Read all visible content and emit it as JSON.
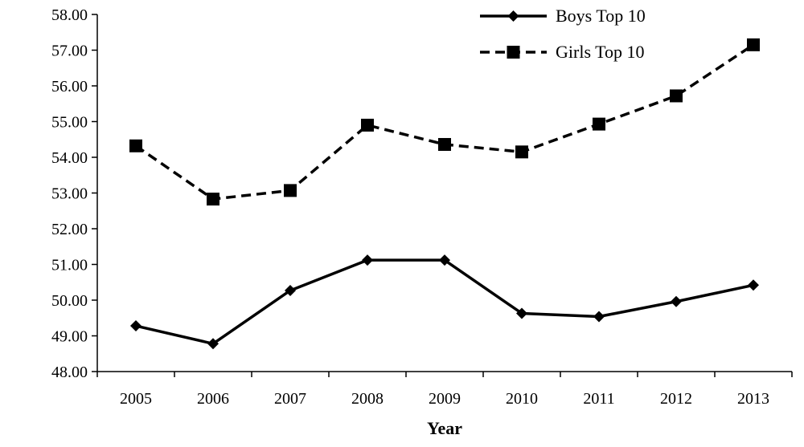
{
  "chart_data": {
    "type": "line",
    "title": "",
    "xlabel": "Year",
    "ylabel": "",
    "categories": [
      "2005",
      "2006",
      "2007",
      "2008",
      "2009",
      "2010",
      "2011",
      "2012",
      "2013"
    ],
    "ylim": [
      48,
      58
    ],
    "ytick_labels": [
      "48.00",
      "49.00",
      "50.00",
      "51.00",
      "52.00",
      "53.00",
      "54.00",
      "55.00",
      "56.00",
      "57.00",
      "58.00"
    ],
    "grid": false,
    "legend_position": "top-right",
    "series": [
      {
        "name": "Boys Top 10",
        "values": [
          49.28,
          48.78,
          50.27,
          51.12,
          51.12,
          49.63,
          49.54,
          49.96,
          50.42
        ],
        "line_style": "solid",
        "marker": "diamond",
        "color": "#000000"
      },
      {
        "name": "Girls Top 10",
        "values": [
          54.32,
          52.83,
          53.07,
          54.9,
          54.36,
          54.15,
          54.93,
          55.72,
          57.15
        ],
        "line_style": "dashed",
        "marker": "square",
        "color": "#000000"
      }
    ]
  }
}
